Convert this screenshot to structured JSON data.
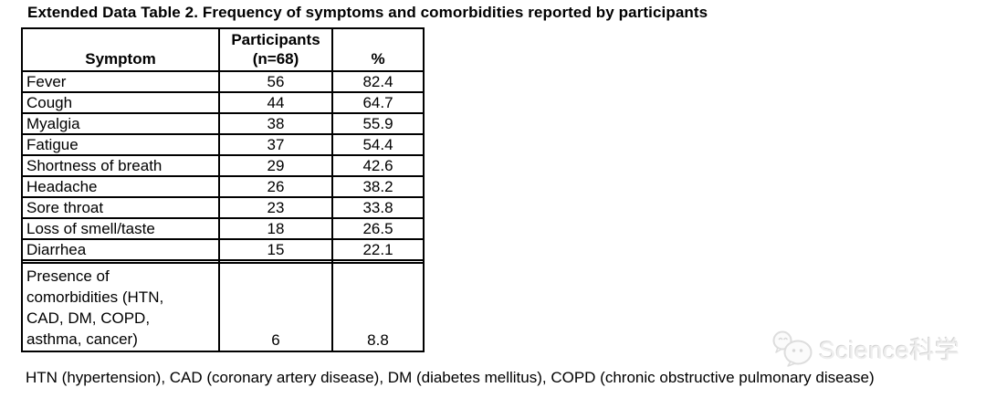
{
  "title": "Extended Data Table 2. Frequency of symptoms and comorbidities reported by participants",
  "table": {
    "header": {
      "symptom": "Symptom",
      "participants_line1": "Participants",
      "participants_line2": "(n=68)",
      "percent": "%"
    },
    "rows": [
      {
        "symptom": "Fever",
        "participants": "56",
        "percent": "82.4"
      },
      {
        "symptom": "Cough",
        "participants": "44",
        "percent": "64.7"
      },
      {
        "symptom": "Myalgia",
        "participants": "38",
        "percent": "55.9"
      },
      {
        "symptom": "Fatigue",
        "participants": "37",
        "percent": "54.4"
      },
      {
        "symptom": "Shortness of breath",
        "participants": "29",
        "percent": "42.6"
      },
      {
        "symptom": "Headache",
        "participants": "26",
        "percent": "38.2"
      },
      {
        "symptom": "Sore throat",
        "participants": "23",
        "percent": "33.8"
      },
      {
        "symptom": "Loss of smell/taste",
        "participants": "18",
        "percent": "26.5"
      },
      {
        "symptom": "Diarrhea",
        "participants": "15",
        "percent": "22.1"
      }
    ],
    "comorbidity_row": {
      "symptom_lines": [
        "Presence of",
        "comorbidities (HTN,",
        "CAD, DM, COPD,",
        "asthma, cancer)"
      ],
      "participants": "6",
      "percent": "8.8"
    }
  },
  "footnote": "HTN (hypertension), CAD (coronary artery disease), DM (diabetes mellitus), COPD (chronic obstructive pulmonary disease)",
  "watermark": {
    "text": "Science科学",
    "icon": "wechat-logo",
    "color": "#eeeeee"
  },
  "colors": {
    "background": "#ffffff",
    "text": "#000000",
    "table_border": "#000000",
    "watermark": "#eeeeee"
  }
}
